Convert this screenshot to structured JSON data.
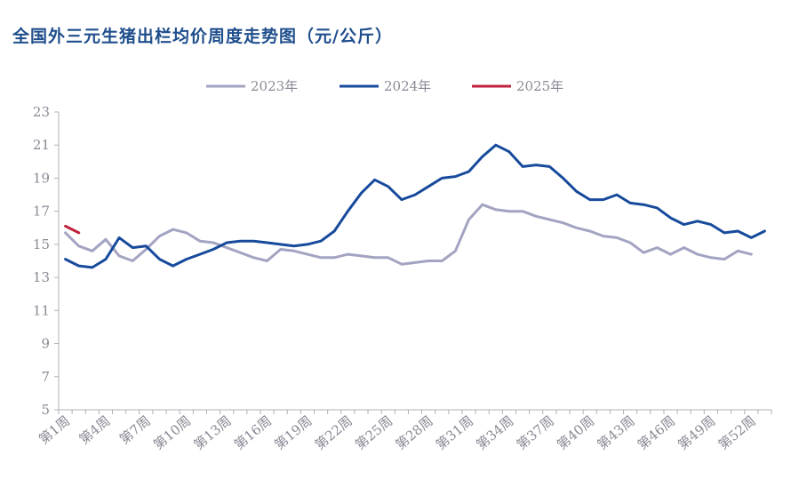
{
  "chart_data": {
    "type": "line",
    "title": "全国外三元生猪出栏均价周度走势图（元/公斤）",
    "ylim": [
      5,
      23
    ],
    "y_ticks": [
      "5",
      "7",
      "9",
      "11",
      "13",
      "15",
      "17",
      "19",
      "21",
      "23"
    ],
    "x_tick_labels": [
      "第1周",
      "第4周",
      "第7周",
      "第10周",
      "第13周",
      "第16周",
      "第19周",
      "第22周",
      "第25周",
      "第28周",
      "第31周",
      "第34周",
      "第37周",
      "第40周",
      "第43周",
      "第46周",
      "第49周",
      "第52周"
    ],
    "grid": false,
    "legend_position": "top-center",
    "series": [
      {
        "name": "2023年",
        "color": "#a3a3c2",
        "values": [
          15.7,
          14.9,
          14.6,
          15.3,
          14.3,
          14.0,
          14.7,
          15.5,
          15.9,
          15.7,
          15.2,
          15.1,
          14.8,
          14.5,
          14.2,
          14.0,
          14.7,
          14.6,
          14.4,
          14.2,
          14.2,
          14.4,
          14.3,
          14.2,
          14.2,
          13.8,
          13.9,
          14.0,
          14.0,
          14.6,
          16.5,
          17.4,
          17.1,
          17.0,
          17.0,
          16.7,
          16.5,
          16.3,
          16.0,
          15.8,
          15.5,
          15.4,
          15.1,
          14.5,
          14.8,
          14.4,
          14.8,
          14.4,
          14.2,
          14.1,
          14.6,
          14.4
        ]
      },
      {
        "name": "2024年",
        "color": "#174a9c",
        "values": [
          14.1,
          13.7,
          13.6,
          14.1,
          15.4,
          14.8,
          14.9,
          14.1,
          13.7,
          14.1,
          14.4,
          14.7,
          15.1,
          15.2,
          15.2,
          15.1,
          15.0,
          14.9,
          15.0,
          15.2,
          15.8,
          17.0,
          18.1,
          18.9,
          18.5,
          17.7,
          18.0,
          18.5,
          19.0,
          19.1,
          19.4,
          20.3,
          21.0,
          20.6,
          19.7,
          19.8,
          19.7,
          19.0,
          18.2,
          17.7,
          17.7,
          18.0,
          17.5,
          17.4,
          17.2,
          16.6,
          16.2,
          16.4,
          16.2,
          15.7,
          15.8,
          15.4,
          15.8
        ]
      },
      {
        "name": "2025年",
        "color": "#c0223b",
        "values": [
          16.1,
          15.7
        ]
      }
    ]
  }
}
